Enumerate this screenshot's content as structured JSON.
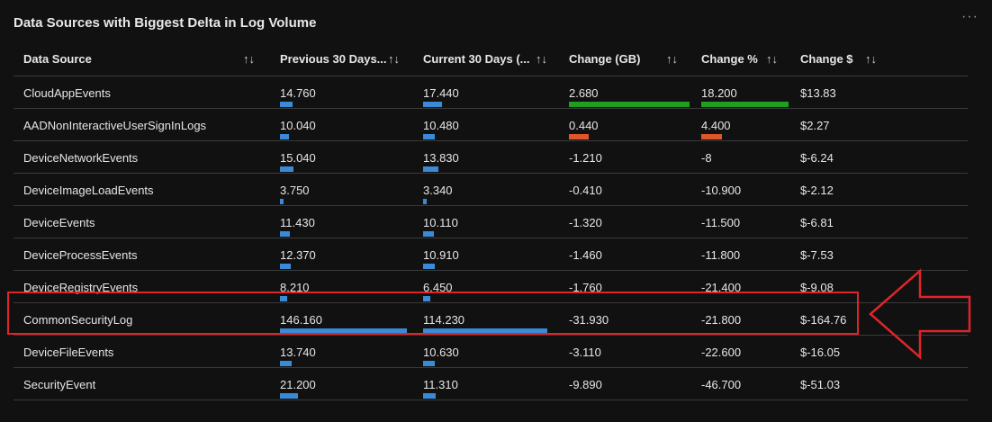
{
  "title": "Data Sources with Biggest Delta in Log Volume",
  "more_glyph": "···",
  "headers": [
    "Data Source",
    "Previous 30 Days...",
    "Current 30 Days (...",
    "Change (GB)",
    "Change %",
    "Change $"
  ],
  "sort_glyph": "↑↓",
  "colors": {
    "background": "#111111",
    "bar_blue": "#3a8ad6",
    "bar_green": "#1ea01e",
    "bar_orange": "#e0562a",
    "highlight": "#e0252a"
  },
  "rows": [
    {
      "source": "CloudAppEvents",
      "prev": "14.760",
      "curr": "17.440",
      "change_gb": "2.680",
      "change_pct": "18.200",
      "change_usd": "$13.83"
    },
    {
      "source": "AADNonInteractiveUserSignInLogs",
      "prev": "10.040",
      "curr": "10.480",
      "change_gb": "0.440",
      "change_pct": "4.400",
      "change_usd": "$2.27"
    },
    {
      "source": "DeviceNetworkEvents",
      "prev": "15.040",
      "curr": "13.830",
      "change_gb": "-1.210",
      "change_pct": "-8",
      "change_usd": "$-6.24"
    },
    {
      "source": "DeviceImageLoadEvents",
      "prev": "3.750",
      "curr": "3.340",
      "change_gb": "-0.410",
      "change_pct": "-10.900",
      "change_usd": "$-2.12"
    },
    {
      "source": "DeviceEvents",
      "prev": "11.430",
      "curr": "10.110",
      "change_gb": "-1.320",
      "change_pct": "-11.500",
      "change_usd": "$-6.81"
    },
    {
      "source": "DeviceProcessEvents",
      "prev": "12.370",
      "curr": "10.910",
      "change_gb": "-1.460",
      "change_pct": "-11.800",
      "change_usd": "$-7.53"
    },
    {
      "source": "DeviceRegistryEvents",
      "prev": "8.210",
      "curr": "6.450",
      "change_gb": "-1.760",
      "change_pct": "-21.400",
      "change_usd": "$-9.08"
    },
    {
      "source": "CommonSecurityLog",
      "prev": "146.160",
      "curr": "114.230",
      "change_gb": "-31.930",
      "change_pct": "-21.800",
      "change_usd": "$-164.76"
    },
    {
      "source": "DeviceFileEvents",
      "prev": "13.740",
      "curr": "10.630",
      "change_gb": "-3.110",
      "change_pct": "-22.600",
      "change_usd": "$-16.05"
    },
    {
      "source": "SecurityEvent",
      "prev": "21.200",
      "curr": "11.310",
      "change_gb": "-9.890",
      "change_pct": "-46.700",
      "change_usd": "$-51.03"
    }
  ],
  "highlighted_row": "CommonSecurityLog"
}
